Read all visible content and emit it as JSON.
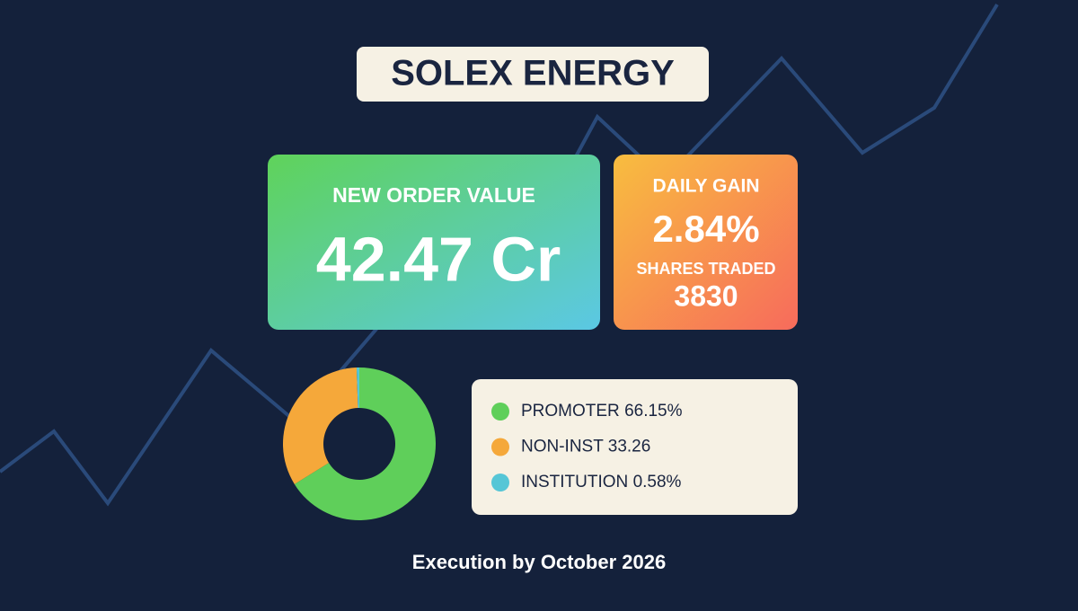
{
  "header": {
    "title": "SOLEX ENERGY"
  },
  "cards": {
    "order": {
      "label": "NEW ORDER VALUE",
      "value": "42.47 Cr"
    },
    "gain": {
      "label": "DAILY GAIN",
      "value": "2.84%",
      "shares_label": "SHARES TRADED",
      "shares": "3830"
    }
  },
  "chart_data": {
    "type": "pie",
    "categories": [
      "PROMOTER",
      "NON-INST",
      "INSTITUTION"
    ],
    "values": [
      66.15,
      33.26,
      0.58
    ],
    "value_labels": [
      "66.15%",
      "33.26",
      "0.58%"
    ],
    "colors": [
      "#5fcf5a",
      "#f5a83a",
      "#56c6d6"
    ]
  },
  "footer": {
    "text": "Execution by October 2026"
  }
}
